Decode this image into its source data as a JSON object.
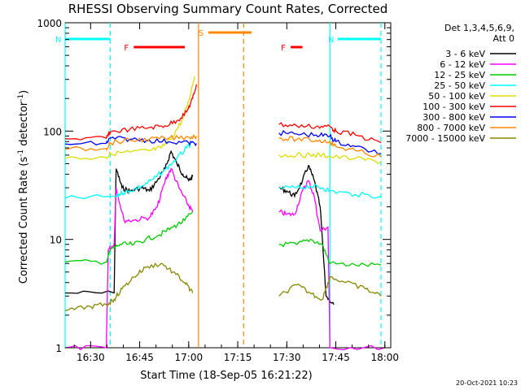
{
  "chart_data": {
    "type": "line",
    "title": "RHESSI Observing Summary Count Rates, Corrected",
    "xlabel": "Start Time (18-Sep-05 16:21:22)",
    "ylabel_main": "Corrected Count Rate (s",
    "ylabel_sup1": "-1",
    "ylabel_mid": " detector",
    "ylabel_sup2": "-1",
    "ylabel_end": ")",
    "yscale": "log",
    "ylim": [
      1,
      1000
    ],
    "xlim_minutes": [
      16.37,
      18.03
    ],
    "x_unit": "hours",
    "x_ticks": [
      {
        "label": "16:30",
        "value": 16.5
      },
      {
        "label": "16:45",
        "value": 16.75
      },
      {
        "label": "17:00",
        "value": 17.0
      },
      {
        "label": "17:15",
        "value": 17.25
      },
      {
        "label": "17:30",
        "value": 17.5
      },
      {
        "label": "17:45",
        "value": 17.75
      },
      {
        "label": "18:00",
        "value": 18.0
      }
    ],
    "y_ticks": [
      {
        "label": "1",
        "value": 1
      },
      {
        "label": "10",
        "value": 10
      },
      {
        "label": "100",
        "value": 100
      },
      {
        "label": "1000",
        "value": 1000
      }
    ],
    "legend_header": [
      "Det 1,3,4,5,6,9,",
      "Att 0"
    ],
    "series": [
      {
        "name": "3 - 6 keV",
        "color": "#000000",
        "points": [
          [
            16.37,
            3.2
          ],
          [
            16.62,
            3.2
          ],
          [
            16.63,
            45
          ],
          [
            16.66,
            30
          ],
          [
            16.7,
            28
          ],
          [
            16.76,
            30
          ],
          [
            16.8,
            28
          ],
          [
            16.84,
            35
          ],
          [
            16.88,
            45
          ],
          [
            16.91,
            65
          ],
          [
            16.94,
            50
          ],
          [
            16.97,
            40
          ],
          [
            17.0,
            35
          ],
          [
            17.02,
            38
          ],
          [
            17.46,
            30
          ],
          [
            17.5,
            28
          ],
          [
            17.54,
            25
          ],
          [
            17.58,
            35
          ],
          [
            17.61,
            48
          ],
          [
            17.64,
            35
          ],
          [
            17.67,
            20
          ],
          [
            17.7,
            3.0
          ],
          [
            17.74,
            2.5
          ]
        ]
      },
      {
        "name": "6 - 12 keV",
        "color": "#ff00ff",
        "points": [
          [
            16.37,
            1.0
          ],
          [
            16.58,
            1.0
          ],
          [
            16.59,
            8
          ],
          [
            16.62,
            9
          ],
          [
            16.63,
            30
          ],
          [
            16.67,
            15
          ],
          [
            16.72,
            15
          ],
          [
            16.8,
            16
          ],
          [
            16.84,
            20
          ],
          [
            16.88,
            35
          ],
          [
            16.91,
            45
          ],
          [
            16.95,
            30
          ],
          [
            16.99,
            22
          ],
          [
            17.02,
            18
          ],
          [
            17.46,
            18
          ],
          [
            17.5,
            17
          ],
          [
            17.54,
            17
          ],
          [
            17.58,
            28
          ],
          [
            17.61,
            35
          ],
          [
            17.64,
            25
          ],
          [
            17.67,
            12
          ],
          [
            17.71,
            13
          ],
          [
            17.72,
            1.0
          ],
          [
            18.0,
            1.0
          ]
        ]
      },
      {
        "name": "12 - 25 keV",
        "color": "#00cc00",
        "points": [
          [
            16.37,
            6.2
          ],
          [
            16.58,
            6.2
          ],
          [
            16.6,
            8
          ],
          [
            16.65,
            9
          ],
          [
            16.72,
            9
          ],
          [
            16.78,
            10
          ],
          [
            16.85,
            11
          ],
          [
            16.92,
            13
          ],
          [
            16.98,
            15
          ],
          [
            17.02,
            18
          ],
          [
            17.46,
            9
          ],
          [
            17.55,
            9
          ],
          [
            17.62,
            10
          ],
          [
            17.68,
            9
          ],
          [
            17.72,
            6
          ],
          [
            17.85,
            5.8
          ],
          [
            17.98,
            5.8
          ]
        ]
      },
      {
        "name": "25 - 50 keV",
        "color": "#00ffff",
        "points": [
          [
            16.37,
            24
          ],
          [
            16.63,
            25
          ],
          [
            16.66,
            27
          ],
          [
            16.7,
            28
          ],
          [
            16.76,
            31
          ],
          [
            16.82,
            36
          ],
          [
            16.88,
            44
          ],
          [
            16.94,
            56
          ],
          [
            16.99,
            70
          ],
          [
            17.02,
            78
          ],
          [
            17.46,
            30
          ],
          [
            17.55,
            30
          ],
          [
            17.62,
            31
          ],
          [
            17.68,
            30
          ],
          [
            17.72,
            28
          ],
          [
            17.85,
            26
          ],
          [
            17.98,
            25
          ]
        ]
      },
      {
        "name": "50 - 100 keV",
        "color": "#dddd00",
        "points": [
          [
            16.37,
            56
          ],
          [
            16.58,
            57
          ],
          [
            16.6,
            62
          ],
          [
            16.7,
            64
          ],
          [
            16.8,
            66
          ],
          [
            16.86,
            70
          ],
          [
            16.92,
            90
          ],
          [
            16.97,
            130
          ],
          [
            17.0,
            190
          ],
          [
            17.03,
            320
          ],
          [
            17.46,
            60
          ],
          [
            17.55,
            60
          ],
          [
            17.62,
            60
          ],
          [
            17.68,
            60
          ],
          [
            17.72,
            58
          ],
          [
            17.85,
            56
          ],
          [
            17.98,
            52
          ]
        ]
      },
      {
        "name": "100 - 300 keV",
        "color": "#ff0000",
        "points": [
          [
            16.37,
            85
          ],
          [
            16.58,
            86
          ],
          [
            16.6,
            98
          ],
          [
            16.7,
            104
          ],
          [
            16.8,
            108
          ],
          [
            16.88,
            112
          ],
          [
            16.94,
            125
          ],
          [
            16.99,
            150
          ],
          [
            17.02,
            200
          ],
          [
            17.04,
            270
          ],
          [
            17.46,
            115
          ],
          [
            17.55,
            112
          ],
          [
            17.65,
            110
          ],
          [
            17.72,
            110
          ],
          [
            17.75,
            100
          ],
          [
            17.85,
            92
          ],
          [
            17.98,
            78
          ]
        ]
      },
      {
        "name": "300 - 800 keV",
        "color": "#0000ff",
        "points": [
          [
            16.37,
            76
          ],
          [
            16.58,
            77
          ],
          [
            16.6,
            86
          ],
          [
            16.7,
            84
          ],
          [
            16.8,
            82
          ],
          [
            16.9,
            80
          ],
          [
            17.0,
            78
          ],
          [
            17.04,
            77
          ],
          [
            17.46,
            96
          ],
          [
            17.55,
            94
          ],
          [
            17.65,
            92
          ],
          [
            17.72,
            90
          ],
          [
            17.75,
            80
          ],
          [
            17.85,
            72
          ],
          [
            17.98,
            62
          ]
        ]
      },
      {
        "name": "800 - 7000 keV",
        "color": "#ff8800",
        "points": [
          [
            16.37,
            68
          ],
          [
            16.58,
            69
          ],
          [
            16.6,
            78
          ],
          [
            16.7,
            82
          ],
          [
            16.8,
            84
          ],
          [
            16.9,
            86
          ],
          [
            17.0,
            88
          ],
          [
            17.04,
            90
          ],
          [
            17.46,
            86
          ],
          [
            17.55,
            84
          ],
          [
            17.65,
            82
          ],
          [
            17.72,
            80
          ],
          [
            17.75,
            72
          ],
          [
            17.85,
            66
          ],
          [
            17.98,
            58
          ]
        ]
      },
      {
        "name": "7000 - 15000 keV",
        "color": "#888800",
        "points": [
          [
            16.37,
            2.2
          ],
          [
            16.5,
            2.4
          ],
          [
            16.58,
            2.5
          ],
          [
            16.62,
            2.8
          ],
          [
            16.66,
            3.5
          ],
          [
            16.72,
            4.5
          ],
          [
            16.78,
            5.5
          ],
          [
            16.86,
            6
          ],
          [
            16.92,
            5
          ],
          [
            16.98,
            4
          ],
          [
            17.02,
            3.2
          ],
          [
            17.46,
            3.0
          ],
          [
            17.55,
            3.8
          ],
          [
            17.62,
            3.2
          ],
          [
            17.68,
            2.8
          ],
          [
            17.72,
            4.5
          ],
          [
            17.8,
            4.0
          ],
          [
            17.9,
            3.5
          ],
          [
            17.98,
            3.0
          ]
        ]
      }
    ],
    "bars": [
      {
        "label": "F",
        "color": "#ff0000",
        "start": 16.72,
        "end": 16.98
      },
      {
        "label": "N",
        "color": "#00ffff",
        "start": 16.37,
        "end": 16.6
      },
      {
        "label": "N",
        "color": "#00ffff",
        "start": 17.76,
        "end": 17.98
      },
      {
        "label": "S",
        "color": "#ff8800",
        "start": 17.1,
        "end": 17.32
      },
      {
        "label": "F",
        "color": "#ff0000",
        "start": 17.52,
        "end": 17.58
      }
    ],
    "vlines": [
      {
        "x": 16.37,
        "color": "#00ffff",
        "dash": false
      },
      {
        "x": 16.6,
        "color": "#00ffff",
        "dash": true
      },
      {
        "x": 17.05,
        "color": "#ff8800",
        "dash": false
      },
      {
        "x": 17.28,
        "color": "#ff8800",
        "dash": true
      },
      {
        "x": 17.72,
        "color": "#00ffff",
        "dash": false
      },
      {
        "x": 17.98,
        "color": "#00ffff",
        "dash": true
      }
    ],
    "footer": "20-Oct-2021 10:23"
  }
}
